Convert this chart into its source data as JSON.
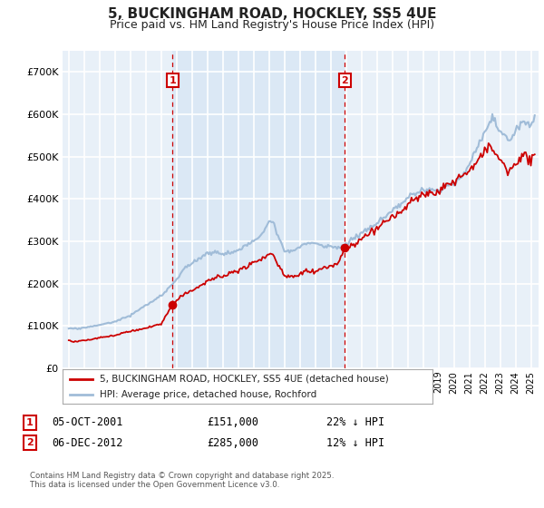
{
  "title": "5, BUCKINGHAM ROAD, HOCKLEY, SS5 4UE",
  "subtitle": "Price paid vs. HM Land Registry's House Price Index (HPI)",
  "legend_line1": "5, BUCKINGHAM ROAD, HOCKLEY, SS5 4UE (detached house)",
  "legend_line2": "HPI: Average price, detached house, Rochford",
  "annotation1_label": "1",
  "annotation1_date": "05-OCT-2001",
  "annotation1_price": "£151,000",
  "annotation1_hpi": "22% ↓ HPI",
  "annotation2_label": "2",
  "annotation2_date": "06-DEC-2012",
  "annotation2_price": "£285,000",
  "annotation2_hpi": "12% ↓ HPI",
  "footnote": "Contains HM Land Registry data © Crown copyright and database right 2025.\nThis data is licensed under the Open Government Licence v3.0.",
  "sale1_x": 2001.75,
  "sale1_y": 151000,
  "sale2_x": 2012.92,
  "sale2_y": 285000,
  "hpi_color": "#a0bcd8",
  "price_color": "#cc0000",
  "sale_dot_color": "#cc0000",
  "vline_color": "#cc0000",
  "shade_color": "#dae8f5",
  "background_color": "#ffffff",
  "plot_bg_color": "#e8f0f8",
  "ylim": [
    0,
    750000
  ],
  "xlim": [
    1994.6,
    2025.5
  ],
  "grid_color": "#ffffff",
  "title_fontsize": 11,
  "subtitle_fontsize": 9
}
